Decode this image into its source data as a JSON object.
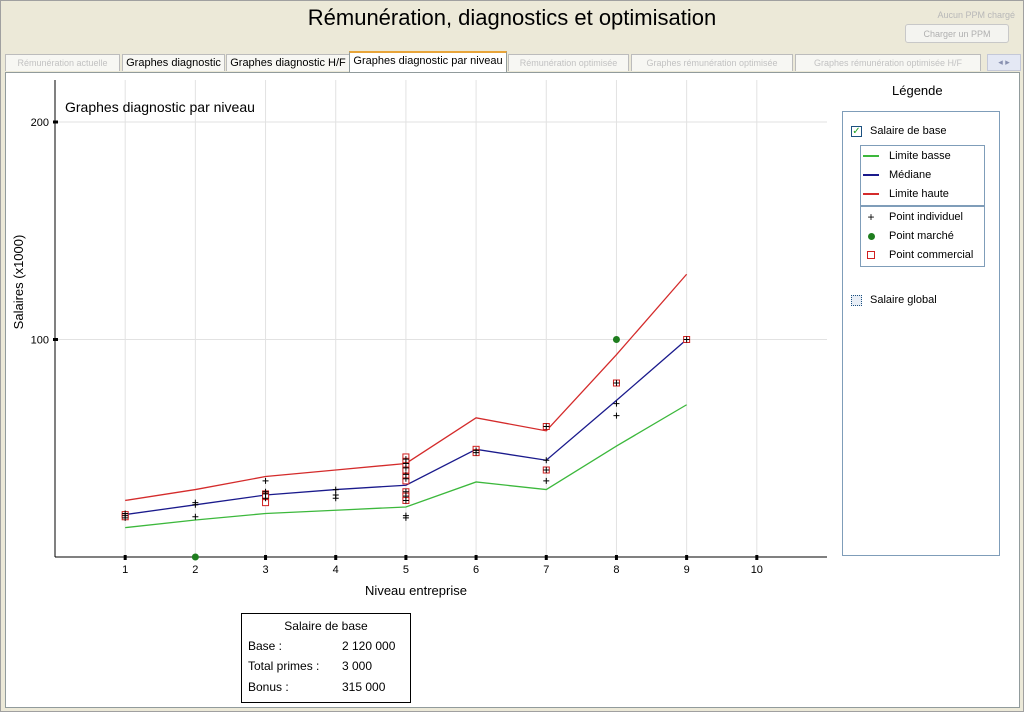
{
  "window": {
    "title": "Rémunération, diagnostics et optimisation",
    "ppm_label": "Aucun PPM chargé",
    "load_ppm_button": "Charger un PPM"
  },
  "tabs": [
    {
      "label": "Rémunération actuelle",
      "state": "disabled"
    },
    {
      "label": "Graphes diagnostic",
      "state": "normal"
    },
    {
      "label": "Graphes diagnostic H/F",
      "state": "normal"
    },
    {
      "label": "Graphes diagnostic par niveau",
      "state": "active"
    },
    {
      "label": "Rémunération optimisée",
      "state": "disabled"
    },
    {
      "label": "Graphes rémunération optimisée",
      "state": "disabled"
    },
    {
      "label": "Graphes rémunération optimisée H/F",
      "state": "disabled"
    }
  ],
  "tab_scroll": "◂ ▸",
  "chart_data": {
    "type": "line",
    "title": "Graphes diagnostic par niveau",
    "xlabel": "Niveau entreprise",
    "ylabel": "Salaires (x1000)",
    "xlim": [
      0,
      11
    ],
    "ylim": [
      0,
      200
    ],
    "x_ticks": [
      1,
      2,
      3,
      4,
      5,
      6,
      7,
      8,
      9,
      10
    ],
    "y_ticks": [
      100,
      200
    ],
    "grid": true,
    "series": [
      {
        "name": "Limite basse",
        "color": "#3cb83c",
        "x": [
          1,
          2,
          3,
          4,
          5,
          6,
          7,
          8,
          9
        ],
        "values": [
          13.5,
          17,
          20,
          21.5,
          23,
          34.5,
          31,
          51,
          70
        ]
      },
      {
        "name": "Médiane",
        "color": "#1a1a8c",
        "x": [
          1,
          2,
          3,
          4,
          5,
          6,
          7,
          8,
          9
        ],
        "values": [
          19.5,
          24,
          28.5,
          31,
          33,
          49.5,
          44.5,
          72,
          100
        ]
      },
      {
        "name": "Limite haute",
        "color": "#d42b2b",
        "x": [
          1,
          2,
          3,
          4,
          5,
          6,
          7,
          8,
          9
        ],
        "values": [
          26,
          31,
          37,
          40,
          43,
          64,
          58,
          93,
          130
        ]
      }
    ],
    "points": {
      "individuel": [
        [
          1,
          19
        ],
        [
          1,
          20
        ],
        [
          1,
          18
        ],
        [
          2,
          25
        ],
        [
          2,
          24
        ],
        [
          2,
          18.5
        ],
        [
          3,
          35
        ],
        [
          3,
          30
        ],
        [
          3,
          29
        ],
        [
          3,
          27
        ],
        [
          4,
          28.5
        ],
        [
          4,
          31
        ],
        [
          4,
          27
        ],
        [
          5,
          45
        ],
        [
          5,
          43
        ],
        [
          5,
          41
        ],
        [
          5,
          38
        ],
        [
          5,
          36
        ],
        [
          5,
          30
        ],
        [
          5,
          28
        ],
        [
          5,
          26
        ],
        [
          5,
          19
        ],
        [
          5,
          18
        ],
        [
          6,
          49
        ],
        [
          6,
          48
        ],
        [
          7,
          44.5
        ],
        [
          7,
          40
        ],
        [
          7,
          35
        ],
        [
          7,
          60
        ],
        [
          8,
          70.5
        ],
        [
          8,
          65
        ],
        [
          8,
          80
        ],
        [
          9,
          100
        ]
      ],
      "marche": [
        [
          2,
          0
        ],
        [
          8,
          100
        ]
      ],
      "commercial": [
        [
          1,
          19.5
        ],
        [
          1,
          18.5
        ],
        [
          3,
          29
        ],
        [
          3,
          27
        ],
        [
          3,
          25
        ],
        [
          3,
          28
        ],
        [
          5,
          46
        ],
        [
          5,
          44
        ],
        [
          5,
          42
        ],
        [
          5,
          40
        ],
        [
          5,
          37
        ],
        [
          5,
          35
        ],
        [
          5,
          30
        ],
        [
          5,
          28
        ],
        [
          5,
          26
        ],
        [
          6,
          49.5
        ],
        [
          6,
          48
        ],
        [
          7,
          60
        ],
        [
          7,
          40
        ],
        [
          8,
          80
        ],
        [
          9,
          100
        ]
      ]
    }
  },
  "legend": {
    "title": "Légende",
    "salaire_base_label": "Salaire de base",
    "salaire_base_checked": true,
    "check_mark": "✓",
    "lines": [
      {
        "label": "Limite basse",
        "color": "#3cb83c"
      },
      {
        "label": "Médiane",
        "color": "#1a1a8c"
      },
      {
        "label": "Limite haute",
        "color": "#d42b2b"
      }
    ],
    "point_individuel": {
      "label": "Point individuel",
      "symbol": "+"
    },
    "point_marche": {
      "label": "Point marché",
      "color": "#1e7d1e"
    },
    "point_commercial": {
      "label": "Point commercial",
      "color": "#d02020"
    },
    "salaire_global_label": "Salaire global",
    "salaire_global_checked": false
  },
  "summary": {
    "title": "Salaire de base",
    "rows": [
      {
        "label": "Base :",
        "value": "2 120 000"
      },
      {
        "label": "Total primes :",
        "value": "3 000"
      },
      {
        "label": "Bonus :",
        "value": "315 000"
      }
    ]
  }
}
